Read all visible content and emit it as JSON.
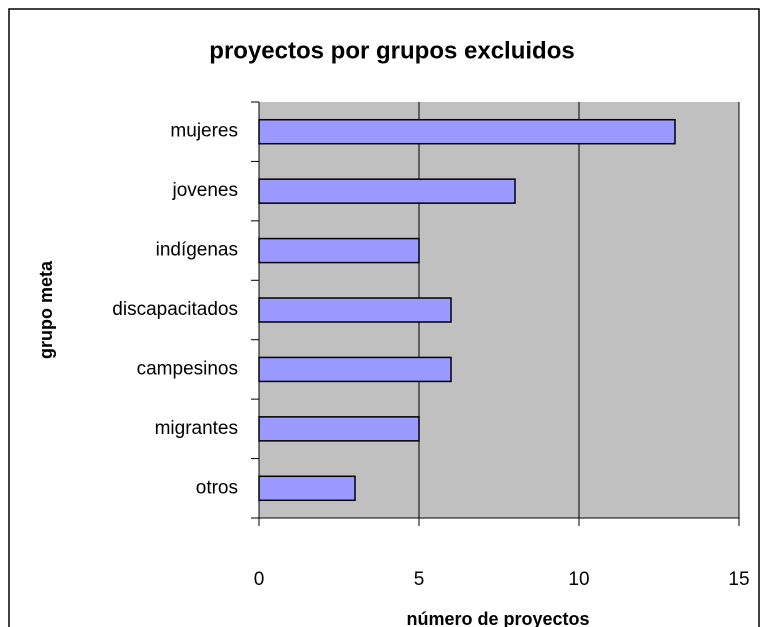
{
  "chart_data": {
    "type": "bar",
    "orientation": "horizontal",
    "title": "proyectos por grupos excluidos",
    "x_label": "número de proyectos",
    "y_label": "grupo meta",
    "categories": [
      "mujeres",
      "jovenes",
      "indígenas",
      "discapacitados",
      "campesinos",
      "migrantes",
      "otros"
    ],
    "values": [
      13,
      8,
      5,
      6,
      6,
      5,
      3
    ],
    "color": "#9999ff",
    "xlim": [
      0,
      15
    ],
    "xticks": [
      0,
      5,
      10,
      15
    ],
    "grid": true
  }
}
